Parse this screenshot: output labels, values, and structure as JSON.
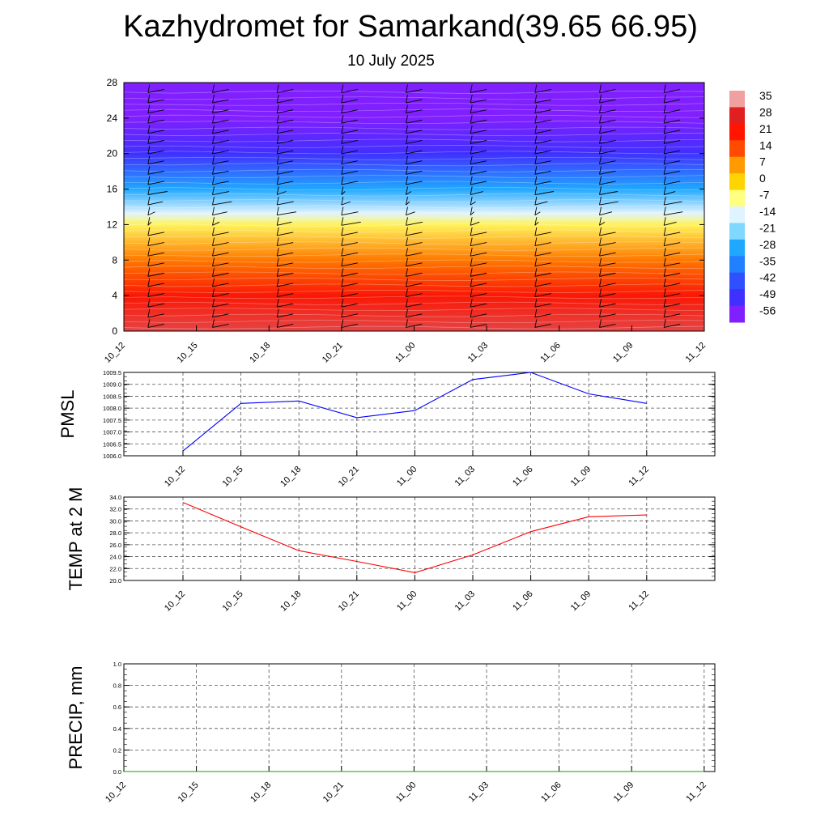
{
  "header": {
    "title": "Kazhydromet for Samarkand(39.65 66.95)",
    "subtitle": "10 July 2025"
  },
  "colors": {
    "pmsl_line": "#0000ff",
    "temp_line": "#ff0000",
    "precip_line": "#00aa00",
    "grid": "#555555",
    "barb": "#000000"
  },
  "chart_data": [
    {
      "type": "heatmap",
      "title": "",
      "ylabel": "",
      "x_tick_labels": [
        "10_12",
        "10_15",
        "10_18",
        "10_21",
        "11_00",
        "11_03",
        "11_06",
        "11_09",
        "11_12"
      ],
      "y_ticks": [
        0,
        4,
        8,
        12,
        16,
        20,
        24,
        28
      ],
      "ylim": [
        0,
        28
      ],
      "colorbar": {
        "labels": [
          "35",
          "28",
          "21",
          "14",
          "7",
          "0",
          "-7",
          "-14",
          "-21",
          "-28",
          "-35",
          "-42",
          "-49",
          "-56"
        ],
        "colors": [
          "#f0a0a0",
          "#e02020",
          "#ff1500",
          "#ff4a00",
          "#ff9a00",
          "#ffd400",
          "#ffff80",
          "#e0f4ff",
          "#80d8ff",
          "#20a8ff",
          "#2080ff",
          "#3050ff",
          "#4030ff",
          "#8020ff"
        ]
      },
      "temperature_profile_by_level": [
        {
          "level": 0,
          "value": 30
        },
        {
          "level": 4,
          "value": 22
        },
        {
          "level": 8,
          "value": 10
        },
        {
          "level": 12,
          "value": -5
        },
        {
          "level": 13.3,
          "value": -14
        },
        {
          "level": 16,
          "value": -28
        },
        {
          "level": 20,
          "value": -49
        },
        {
          "level": 24,
          "value": -60
        },
        {
          "level": 28,
          "value": -60
        }
      ],
      "wind_barbs": "present",
      "legend_position": "right"
    },
    {
      "type": "line",
      "ylabel": "PMSL",
      "categories": [
        "10_12",
        "10_15",
        "10_18",
        "10_21",
        "11_00",
        "11_03",
        "11_06",
        "11_09",
        "11_12"
      ],
      "ylim": [
        1006.0,
        1009.5
      ],
      "y_ticks": [
        "1006.0",
        "1006.5",
        "1007.0",
        "1007.5",
        "1008.0",
        "1008.5",
        "1009.0",
        "1009.5"
      ],
      "series": [
        {
          "values": [
            1006.2,
            1008.2,
            1008.3,
            1007.6,
            1007.9,
            1009.2,
            1009.5,
            1008.6,
            1008.2
          ]
        }
      ],
      "grid": true
    },
    {
      "type": "line",
      "ylabel": "TEMP at 2 M",
      "categories": [
        "10_12",
        "10_15",
        "10_18",
        "10_21",
        "11_00",
        "11_03",
        "11_06",
        "11_09",
        "11_12"
      ],
      "ylim": [
        20.0,
        34.0
      ],
      "y_ticks": [
        "20.0",
        "22.0",
        "24.0",
        "26.0",
        "28.0",
        "30.0",
        "32.0",
        "34.0"
      ],
      "series": [
        {
          "values": [
            33.1,
            29.0,
            25.0,
            23.2,
            21.3,
            24.3,
            28.2,
            30.7,
            31.0
          ]
        }
      ],
      "grid": true
    },
    {
      "type": "line",
      "ylabel": "PRECIP, mm",
      "x_tick_labels": [
        "10_12",
        "10_15",
        "10_18",
        "10_21",
        "11_00",
        "11_03",
        "11_06",
        "11_09",
        "11_12"
      ],
      "ylim": [
        0.0,
        1.0
      ],
      "y_ticks": [
        "0.0",
        "0.2",
        "0.4",
        "0.6",
        "0.8",
        "1.0"
      ],
      "series": [
        {
          "values": [
            0,
            0,
            0,
            0,
            0,
            0,
            0,
            0,
            0
          ]
        }
      ],
      "grid": true
    }
  ]
}
